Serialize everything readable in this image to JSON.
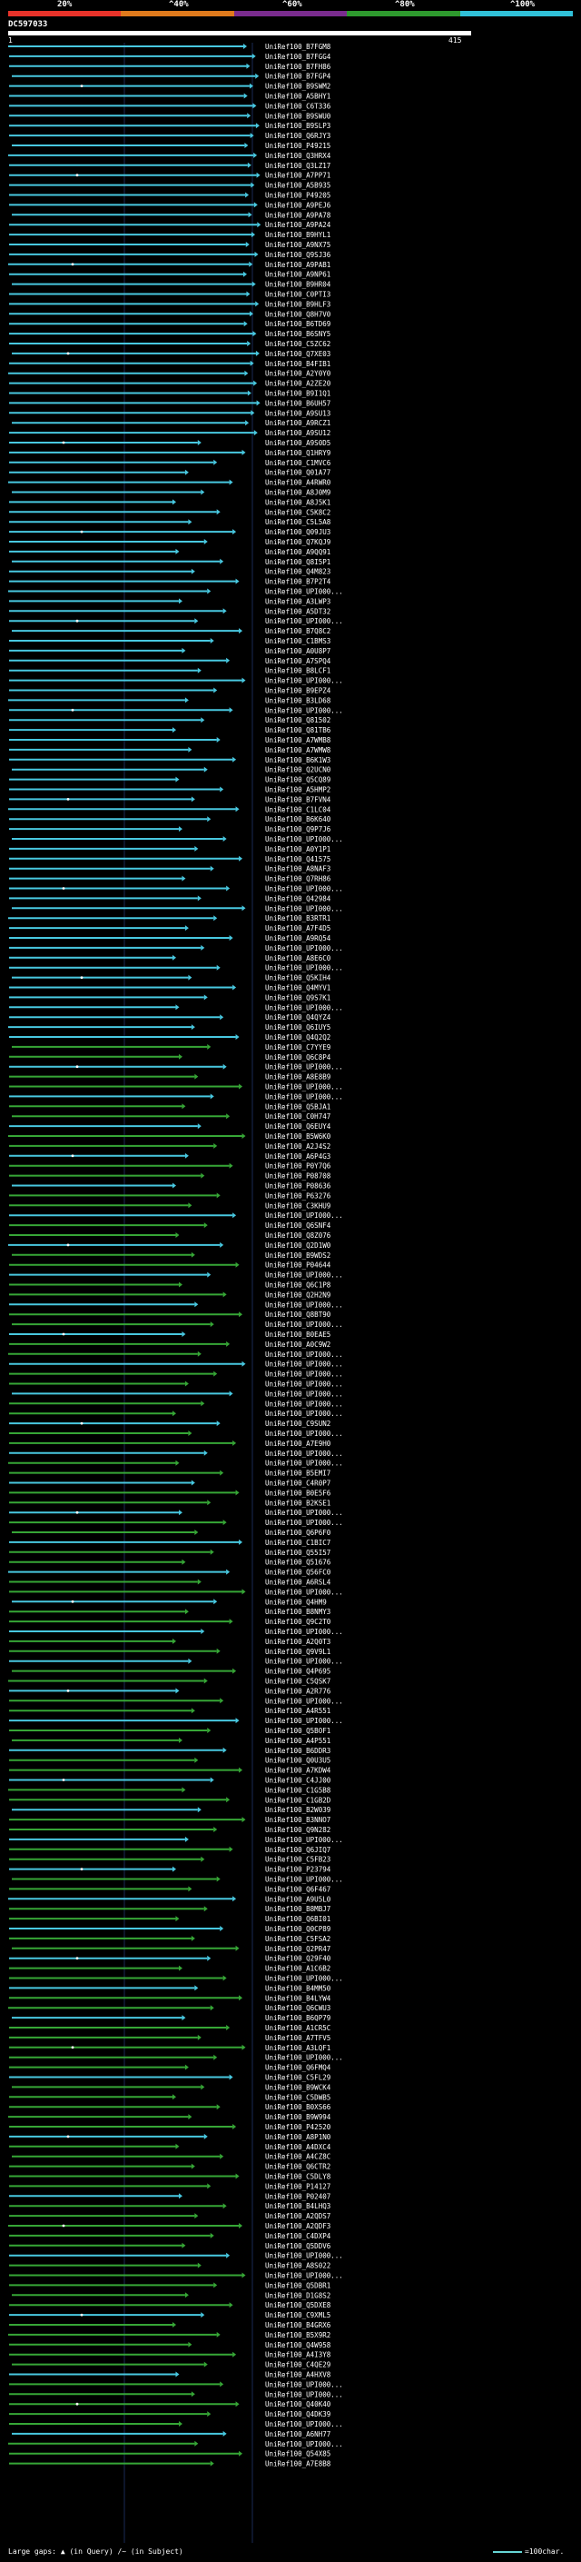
{
  "query": {
    "name": "DC597033",
    "start": "1",
    "end": "415"
  },
  "legend": {
    "labels": [
      "20%",
      "^40%",
      "^60%",
      "^80%",
      "^100%"
    ],
    "colors": [
      "#e8332a",
      "#e07a1c",
      "#7a2c8e",
      "#2e9a2e",
      "#30c0d8"
    ]
  },
  "footer": {
    "large_gaps": "Large gaps:",
    "query_gap": "(in Query)",
    "subject_gap": "/~ (in Subject)",
    "scale_note": "=100char."
  },
  "hit_colors": {
    "cyan": "#48c8e0",
    "green": "#36a636",
    "gap_marker": "#ffffff"
  },
  "hits": [
    "UniRef100_B7FGM8",
    "UniRef100_B7FGG4",
    "UniRef100_B7FH86",
    "UniRef100_B7FGP4",
    "UniRef100_B9SWM2",
    "UniRef100_A5BHY1",
    "UniRef100_C6T336",
    "UniRef100_B9SWU0",
    "UniRef100_B9SLP3",
    "UniRef100_Q6RJY3",
    "UniRef100_P49215",
    "UniRef100_Q3HRX4",
    "UniRef100_Q3LZ17",
    "UniRef100_A7PP71",
    "UniRef100_A5B935",
    "UniRef100_P49205",
    "UniRef100_A9PEJ6",
    "UniRef100_A9PA78",
    "UniRef100_A9PA24",
    "UniRef100_B9HYL1",
    "UniRef100_A9NX75",
    "UniRef100_Q9SJ36",
    "UniRef100_A9PAB1",
    "UniRef100_A9NP61",
    "UniRef100_B9HR04",
    "UniRef100_C0PTI3",
    "UniRef100_B9HLF3",
    "UniRef100_Q8H7V0",
    "UniRef100_B6TD69",
    "UniRef100_B6SNY5",
    "UniRef100_C5ZC62",
    "UniRef100_Q7XE03",
    "UniRef100_B4FIB1",
    "UniRef100_A2Y0Y0",
    "UniRef100_A2ZE20",
    "UniRef100_B9I1Q1",
    "UniRef100_B6UH57",
    "UniRef100_A9SU13",
    "UniRef100_A9RCZ1",
    "UniRef100_A9SU12",
    "UniRef100_A9S0D5",
    "UniRef100_Q1HRY9",
    "UniRef100_C1MVC6",
    "UniRef100_Q01A77",
    "UniRef100_A4RWR0",
    "UniRef100_A8J0M9",
    "UniRef100_A8J5K1",
    "UniRef100_C5K8C2",
    "UniRef100_C5L5A8",
    "UniRef100_Q09JU3",
    "UniRef100_Q7KQJ9",
    "UniRef100_A9QQ91",
    "UniRef100_Q8I5P1",
    "UniRef100_Q4M823",
    "UniRef100_B7P2T4",
    "UniRef100_UPI000...",
    "UniRef100_A3LWP3",
    "UniRef100_A5DT32",
    "UniRef100_UPI000...",
    "UniRef100_B7Q8C2",
    "UniRef100_C1BMS3",
    "UniRef100_A0U8P7",
    "UniRef100_A7SPQ4",
    "UniRef100_B8LCF1",
    "UniRef100_UPI000...",
    "UniRef100_B9EPZ4",
    "UniRef100_B3LD68",
    "UniRef100_UPI000...",
    "UniRef100_Q81502",
    "UniRef100_Q81TB6",
    "UniRef100_A7WMB8",
    "UniRef100_A7WMW8",
    "UniRef100_B6K1W3",
    "UniRef100_Q2UCN0",
    "UniRef100_Q5CQ89",
    "UniRef100_A5HMP2",
    "UniRef100_B7FVN4",
    "UniRef100_C1LC04",
    "UniRef100_B6K640",
    "UniRef100_Q9P7J6",
    "UniRef100_UPI000...",
    "UniRef100_A0Y1P1",
    "UniRef100_Q41575",
    "UniRef100_A8NAF3",
    "UniRef100_Q7RH86",
    "UniRef100_UPI000...",
    "UniRef100_Q42984",
    "UniRef100_UPI000...",
    "UniRef100_B3RTR1",
    "UniRef100_A7F4D5",
    "UniRef100_A9RQ54",
    "UniRef100_UPI000...",
    "UniRef100_A8E6C0",
    "UniRef100_UPI000...",
    "UniRef100_Q5KIH4",
    "UniRef100_Q4MYV1",
    "UniRef100_Q9S7K1",
    "UniRef100_UPI000...",
    "UniRef100_Q4QYZ4",
    "UniRef100_Q6IUY5",
    "UniRef100_Q4Q2Q2",
    "UniRef100_C7YYE9",
    "UniRef100_Q6C8P4",
    "UniRef100_UPI000...",
    "UniRef100_A8E8B9",
    "UniRef100_UPI000...",
    "UniRef100_UPI000...",
    "UniRef100_Q5BJA1",
    "UniRef100_C0H747",
    "UniRef100_Q6EUY4",
    "UniRef100_B5W6K0",
    "UniRef100_A2J4S2",
    "UniRef100_A6P4G3",
    "UniRef100_P0Y7Q6",
    "UniRef100_P08708",
    "UniRef100_P08636",
    "UniRef100_P63276",
    "UniRef100_C3KHU9",
    "UniRef100_UPI000...",
    "UniRef100_Q6SNF4",
    "UniRef100_Q8Z076",
    "UniRef100_Q2D1W0",
    "UniRef100_B9WDS2",
    "UniRef100_P04644",
    "UniRef100_UPI000...",
    "UniRef100_Q6C1P8",
    "UniRef100_Q2H2N9",
    "UniRef100_UPI000...",
    "UniRef100_Q8BT90",
    "UniRef100_UPI000...",
    "UniRef100_B0EAE5",
    "UniRef100_A0C9W2",
    "UniRef100_UPI000...",
    "UniRef100_UPI000...",
    "UniRef100_UPI000...",
    "UniRef100_UPI000...",
    "UniRef100_UPI000...",
    "UniRef100_UPI000...",
    "UniRef100_UPI000...",
    "UniRef100_C9SUN2",
    "UniRef100_UPI000...",
    "UniRef100_A7E9H0",
    "UniRef100_UPI000...",
    "UniRef100_UPI000...",
    "UniRef100_B5EMI7",
    "UniRef100_C4R0P7",
    "UniRef100_B0E5F6",
    "UniRef100_B2KSE1",
    "UniRef100_UPI000...",
    "UniRef100_UPI000...",
    "UniRef100_Q6P6F0",
    "UniRef100_C1BIC7",
    "UniRef100_Q55I57",
    "UniRef100_Q51676",
    "UniRef100_Q56FC0",
    "UniRef100_A6RSL4",
    "UniRef100_UPI000...",
    "UniRef100_Q4HM9",
    "UniRef100_B8NMY3",
    "UniRef100_Q9C2T0",
    "UniRef100_UPI000...",
    "UniRef100_A2Q0T3",
    "UniRef100_Q9V9L1",
    "UniRef100_UPI000...",
    "UniRef100_Q4P695",
    "UniRef100_C5QSK7",
    "UniRef100_A2R776",
    "UniRef100_UPI000...",
    "UniRef100_A4R551",
    "UniRef100_UPI000...",
    "UniRef100_Q5BOF1",
    "UniRef100_A4P551",
    "UniRef100_B6DDR3",
    "UniRef100_Q0U3U5",
    "UniRef100_A7KDW4",
    "UniRef100_C4JJ00",
    "UniRef100_C1G5B8",
    "UniRef100_C1GB2D",
    "UniRef100_B2W039",
    "UniRef100_B3NNO7",
    "UniRef100_Q9N282",
    "UniRef100_UPI000...",
    "UniRef100_Q6JIQ7",
    "UniRef100_C5FB23",
    "UniRef100_P23794",
    "UniRef100_UPI000...",
    "UniRef100_Q6F467",
    "UniRef100_A9U5L0",
    "UniRef100_B8MBJ7",
    "UniRef100_Q6BI01",
    "UniRef100_Q0CP89",
    "UniRef100_C5FSA2",
    "UniRef100_Q2PR47",
    "UniRef100_Q29F40",
    "UniRef100_A1C6B2",
    "UniRef100_UPI000...",
    "UniRef100_B4MM50",
    "UniRef100_B4LYW4",
    "UniRef100_Q6CWU3",
    "UniRef100_B6QP79",
    "UniRef100_A1CR5C",
    "UniRef100_A7TFV5",
    "UniRef100_A3LQF1",
    "UniRef100_UPI000...",
    "UniRef100_Q6FMQ4",
    "UniRef100_C5FL29",
    "UniRef100_B9WCK4",
    "UniRef100_C5DWB5",
    "UniRef100_B0XS66",
    "UniRef100_B9W994",
    "UniRef100_P42520",
    "UniRef100_A8P1N0",
    "UniRef100_A4DXC4",
    "UniRef100_A4CZ8C",
    "UniRef100_Q6CTR2",
    "UniRef100_C5DLY8",
    "UniRef100_P14127",
    "UniRef100_P02407",
    "UniRef100_B4LHQ3",
    "UniRef100_A2QDS7",
    "UniRef100_A2QDF3",
    "UniRef100_C4DXP4",
    "UniRef100_Q5DDV6",
    "UniRef100_UPI000...",
    "UniRef100_A8S022",
    "UniRef100_UPI000...",
    "UniRef100_Q5DBR1",
    "UniRef100_D1G8S2",
    "UniRef100_Q5DXE8",
    "UniRef100_C9XML5",
    "UniRef100_B4GRX6",
    "UniRef100_B5X9R2",
    "UniRef100_Q4W958",
    "UniRef100_A4I3Y8",
    "UniRef100_C4QE29",
    "UniRef100_A4HXV8",
    "UniRef100_UPI000...",
    "UniRef100_UPI000...",
    "UniRef100_Q40K40",
    "UniRef100_Q4DK39",
    "UniRef100_UPI000...",
    "UniRef100_A6NH77",
    "UniRef100_UPI000...",
    "UniRef100_Q54X85",
    "UniRef100_A7E8B8"
  ]
}
